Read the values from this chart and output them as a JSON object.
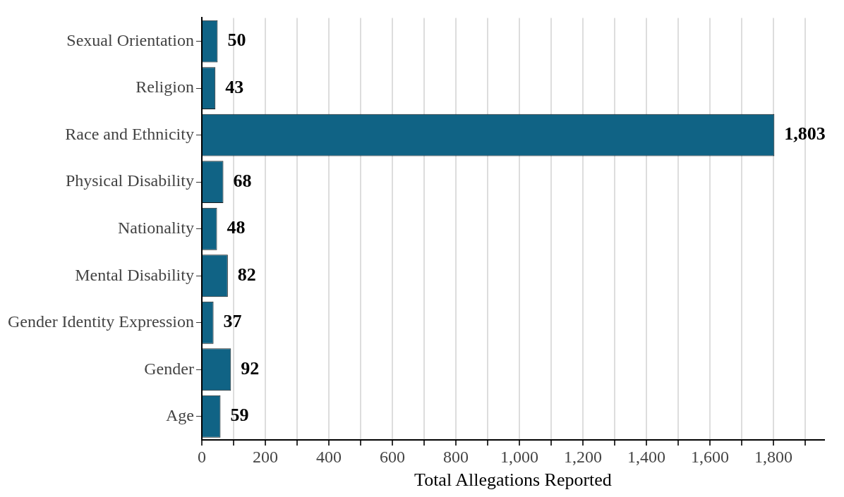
{
  "chart_data": {
    "type": "bar",
    "orientation": "horizontal",
    "xlabel": "Total Allegations Reported",
    "categories": [
      "Sexual Orientation",
      "Religion",
      "Race and Ethnicity",
      "Physical Disability",
      "Nationality",
      "Mental Disability",
      "Gender Identity Expression",
      "Gender",
      "Age"
    ],
    "values": [
      50,
      43,
      1803,
      68,
      48,
      82,
      37,
      92,
      59
    ],
    "value_labels": [
      "50",
      "43",
      "1,803",
      "68",
      "48",
      "82",
      "37",
      "92",
      "59"
    ],
    "color": "#106385",
    "xlim": [
      0,
      1960
    ],
    "xticks": [
      0,
      {
        "value": 100,
        "label": null
      },
      200,
      {
        "value": 300,
        "label": null
      },
      400,
      {
        "value": 500,
        "label": null
      },
      600,
      {
        "value": 700,
        "label": null
      },
      800,
      {
        "value": 900,
        "label": null
      },
      {
        "value": 1000,
        "label": "1,000"
      },
      {
        "value": 1100,
        "label": null
      },
      {
        "value": 1200,
        "label": "1,200"
      },
      {
        "value": 1300,
        "label": null
      },
      {
        "value": 1400,
        "label": "1,400"
      },
      {
        "value": 1500,
        "label": null
      },
      {
        "value": 1600,
        "label": "1,600"
      },
      {
        "value": 1700,
        "label": null
      },
      {
        "value": 1800,
        "label": "1,800"
      },
      {
        "value": 1900,
        "label": null
      }
    ],
    "grid": "x",
    "legend": false
  }
}
